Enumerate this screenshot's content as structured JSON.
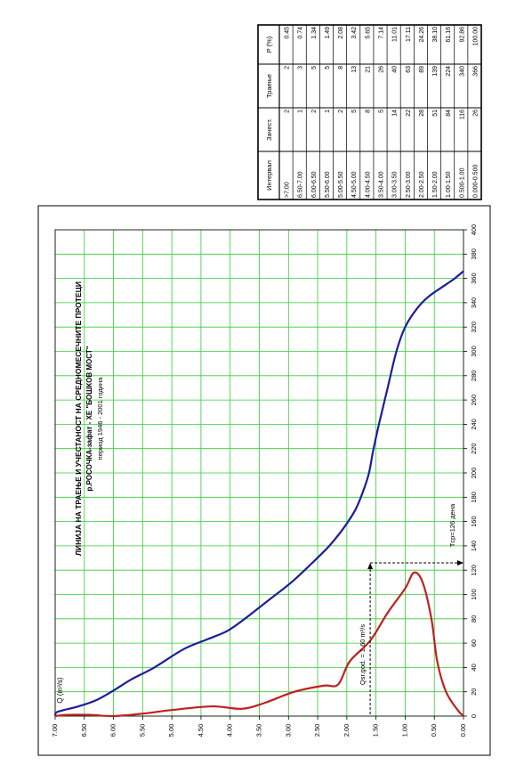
{
  "table": {
    "headers": [
      "Интервал",
      "Зачест.",
      "Траење",
      "P (%)"
    ],
    "rows": [
      [
        ">7.00",
        "2",
        "2",
        "0.45"
      ],
      [
        "6.50-7.00",
        "1",
        "3",
        "0.74"
      ],
      [
        "6.00-6.50",
        "2",
        "5",
        "1.34"
      ],
      [
        "5.50-6.00",
        "1",
        "5",
        "1.49"
      ],
      [
        "5.00-5.50",
        "2",
        "8",
        "2.08"
      ],
      [
        "4.50-5.00",
        "5",
        "13",
        "3.42"
      ],
      [
        "4.00-4.50",
        "8",
        "21",
        "5.65"
      ],
      [
        "3.50-4.00",
        "5",
        "26",
        "7.14"
      ],
      [
        "3.00-3.50",
        "14",
        "40",
        "11.01"
      ],
      [
        "2.50-3.00",
        "22",
        "63",
        "17.11"
      ],
      [
        "2.00-2.50",
        "28",
        "89",
        "24.26"
      ],
      [
        "1.50-2.00",
        "51",
        "139",
        "38.10"
      ],
      [
        "1.00-1.50",
        "84",
        "224",
        "61.16"
      ],
      [
        "0.500-1.00",
        "116",
        "340",
        "92.86"
      ],
      [
        "0.000-0.500",
        "26",
        "366",
        "100.00"
      ]
    ]
  },
  "chart_data": {
    "type": "line",
    "title_lines": [
      "ЛИНИЈА НА ТРАЕЊЕ И УЧЕСТАНОСТ НА СРЕДНОМЕСЕЧНИТЕ ПРОТЕЦИ",
      "р.РОСОЧКА-зафат - ХЕ \"БОШКОВ МОСТ\"",
      "период 1946 - 2001 година"
    ],
    "ylabel": "Q (m³/s)",
    "xlim": [
      0,
      400
    ],
    "ylim": [
      0,
      7
    ],
    "x_ticks": [
      0,
      20,
      40,
      60,
      80,
      100,
      120,
      140,
      160,
      180,
      200,
      220,
      240,
      260,
      280,
      300,
      320,
      340,
      360,
      380,
      400
    ],
    "y_ticks": [
      "0.00",
      "0.50",
      "1.00",
      "1.50",
      "2.00",
      "2.50",
      "3.00",
      "3.50",
      "4.00",
      "4.50",
      "5.00",
      "5.50",
      "6.00",
      "6.50",
      "7.00"
    ],
    "grid": true,
    "series": [
      {
        "color": "#1c1c9c",
        "points": [
          [
            0,
            7.0
          ],
          [
            3,
            6.98
          ],
          [
            5,
            6.85
          ],
          [
            8,
            6.6
          ],
          [
            13,
            6.3
          ],
          [
            21,
            6.0
          ],
          [
            30,
            5.7
          ],
          [
            40,
            5.3
          ],
          [
            55,
            4.8
          ],
          [
            63,
            4.4
          ],
          [
            70,
            4.05
          ],
          [
            80,
            3.75
          ],
          [
            95,
            3.35
          ],
          [
            110,
            2.95
          ],
          [
            128,
            2.55
          ],
          [
            140,
            2.3
          ],
          [
            155,
            2.05
          ],
          [
            170,
            1.85
          ],
          [
            185,
            1.72
          ],
          [
            200,
            1.62
          ],
          [
            218,
            1.55
          ],
          [
            240,
            1.45
          ],
          [
            270,
            1.3
          ],
          [
            300,
            1.15
          ],
          [
            320,
            1.0
          ],
          [
            335,
            0.8
          ],
          [
            345,
            0.6
          ],
          [
            355,
            0.3
          ],
          [
            360,
            0.15
          ],
          [
            366,
            0.0
          ]
        ]
      },
      {
        "color": "#c02020",
        "points": [
          [
            0,
            7.0
          ],
          [
            1,
            6.8
          ],
          [
            1,
            6.4
          ],
          [
            0,
            6.0
          ],
          [
            2,
            5.5
          ],
          [
            5,
            5.0
          ],
          [
            8,
            4.3
          ],
          [
            6,
            3.8
          ],
          [
            11,
            3.4
          ],
          [
            20,
            2.9
          ],
          [
            25,
            2.4
          ],
          [
            26,
            2.15
          ],
          [
            45,
            1.95
          ],
          [
            62,
            1.6
          ],
          [
            85,
            1.3
          ],
          [
            105,
            1.0
          ],
          [
            118,
            0.85
          ],
          [
            110,
            0.7
          ],
          [
            80,
            0.55
          ],
          [
            45,
            0.45
          ],
          [
            20,
            0.3
          ],
          [
            5,
            0.1
          ],
          [
            0,
            0.0
          ]
        ]
      }
    ],
    "annotations": {
      "qsr": "Qsr.god. = 1.60 m³/s",
      "tcp": "Tср=126 дена",
      "qsr_value": 1.6,
      "tcp_value": 126
    }
  }
}
